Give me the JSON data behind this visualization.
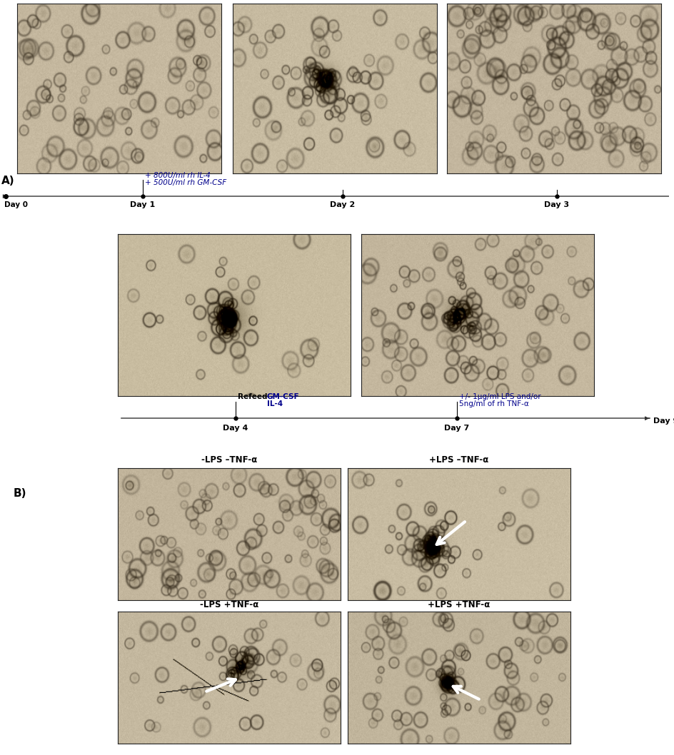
{
  "fig_width": 9.45,
  "fig_height": 10.58,
  "bg_color": "#ffffff",
  "section_a_label": "A)",
  "section_b_label": "B)",
  "annotation_color_blue": "#00008B",
  "annotation_color_black": "#000000",
  "timeline1_annot_day1_line1": "+ 800U/ml rh IL-4",
  "timeline1_annot_day1_line2": "+ 500U/ml rh GM-CSF",
  "timeline2_refeed": "Refeed",
  "timeline2_gm": "GM-CSF",
  "timeline2_il": "IL-4",
  "timeline2_day7_line1": "+/- 1μg/ml LPS and/or",
  "timeline2_day7_line2": "5ng/ml of rh TNF-α",
  "panel_b_labels": [
    "-LPS –TNF-α",
    "+LPS –TNF-α",
    "-LPS +TNF-α",
    "+LPS +TNF-α"
  ],
  "img_bg_tan": [
    195,
    180,
    155
  ],
  "img_bg_tan2": [
    200,
    185,
    158
  ],
  "cell_dark": [
    60,
    50,
    35
  ],
  "cell_mid": [
    140,
    125,
    100
  ]
}
